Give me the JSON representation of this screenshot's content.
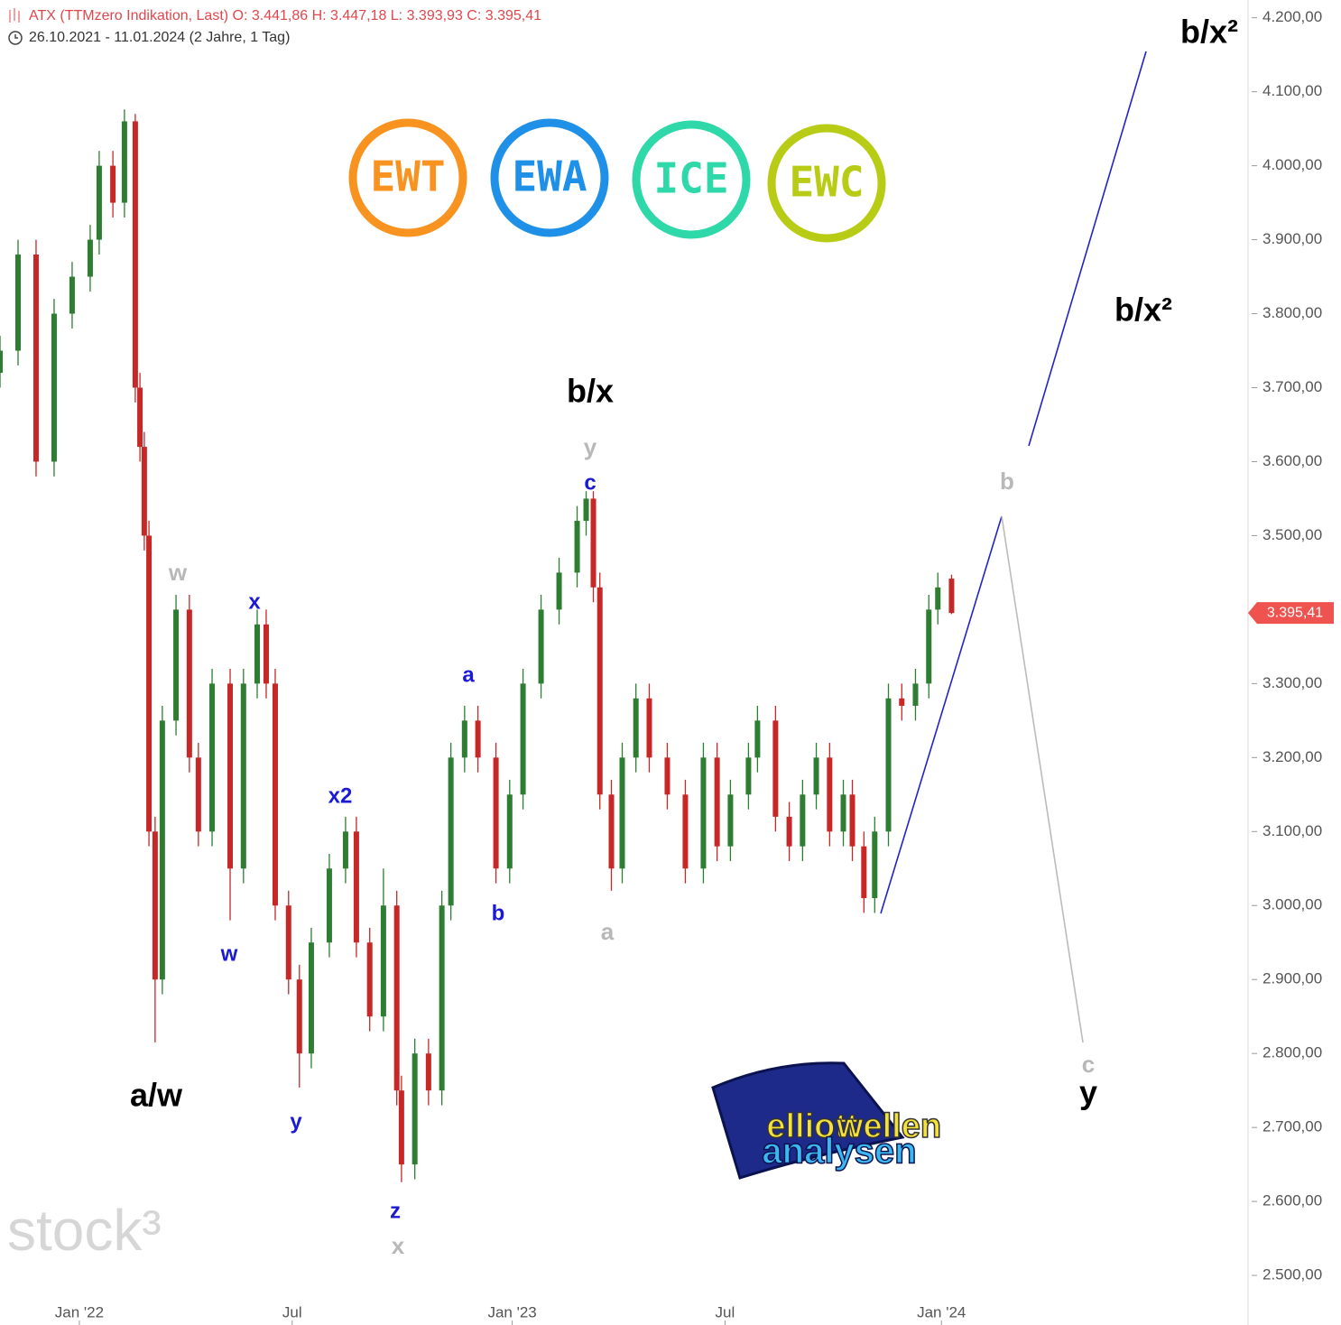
{
  "chart_data": {
    "type": "candlestick",
    "title": "ATX (TTMzero Indikation, Last)  O: 3.441,86  H: 3.447,18  L: 3.393,93  C: 3.395,41",
    "subtitle": "26.10.2021 - 11.01.2024   (2 Jahre, 1 Tag)",
    "price_tag": "3.395,41",
    "watermark": "stock³",
    "logos": [
      "EWT",
      "EWA",
      "ICE",
      "EWC"
    ],
    "brand": [
      "elliott",
      "wellen",
      "analysen"
    ],
    "annotations": [
      "w",
      "x",
      "w",
      "a/w",
      "y",
      "x2",
      "z",
      "x",
      "a",
      "b",
      "b/x",
      "y",
      "c",
      "a",
      "b",
      "c",
      "y",
      "b/x²",
      "b/x²"
    ],
    "up_color": "#2e7d32",
    "down_color": "#c62828",
    "xlim": [
      0,
      34.6
    ],
    "xticks": [
      {
        "value": 2.2,
        "label": "Jan '22"
      },
      {
        "value": 8.1,
        "label": "Jul"
      },
      {
        "value": 14.2,
        "label": "Jan '23"
      },
      {
        "value": 20.1,
        "label": "Jul"
      },
      {
        "value": 26.1,
        "label": "Jan '24"
      }
    ],
    "ylim": [
      2433,
      4224
    ],
    "yticks": [
      {
        "value": 2500,
        "label": "2.500,00"
      },
      {
        "value": 2600,
        "label": "2.600,00"
      },
      {
        "value": 2700,
        "label": "2.700,00"
      },
      {
        "value": 2800,
        "label": "2.800,00"
      },
      {
        "value": 2900,
        "label": "2.900,00"
      },
      {
        "value": 3000,
        "label": "3.000,00"
      },
      {
        "value": 3100,
        "label": "3.100,00"
      },
      {
        "value": 3200,
        "label": "3.200,00"
      },
      {
        "value": 3300,
        "label": "3.300,00"
      },
      {
        "value": 3400,
        "label": "3.400,00"
      },
      {
        "value": 3500,
        "label": "3.500,00"
      },
      {
        "value": 3600,
        "label": "3.600,00"
      },
      {
        "value": 3700,
        "label": "3.700,00"
      },
      {
        "value": 3800,
        "label": "3.800,00"
      },
      {
        "value": 3900,
        "label": "3.900,00"
      },
      {
        "value": 4000,
        "label": "4.000,00"
      },
      {
        "value": 4100,
        "label": "4.100,00"
      },
      {
        "value": 4200,
        "label": "4.200,00"
      }
    ],
    "x": [
      0,
      0.5,
      1,
      1.5,
      2,
      2.5,
      2.75,
      3.13,
      3.45,
      3.75,
      3.88,
      4,
      4.13,
      4.3,
      4.5,
      4.88,
      5.25,
      5.5,
      5.88,
      6.38,
      6.75,
      7.13,
      7.38,
      7.63,
      8,
      8.3,
      8.63,
      9.13,
      9.58,
      9.88,
      10.25,
      10.63,
      11,
      11.13,
      11.5,
      11.88,
      12.25,
      12.5,
      12.88,
      13.25,
      13.75,
      14.13,
      14.5,
      15,
      15.5,
      16,
      16.25,
      16.45,
      16.63,
      16.95,
      17.25,
      17.63,
      18,
      18.5,
      19,
      19.5,
      19.88,
      20.25,
      20.75,
      21,
      21.5,
      21.88,
      22.25,
      22.63,
      23,
      23.38,
      23.63,
      23.95,
      24.25,
      24.63,
      25,
      25.38,
      25.75,
      26,
      26.38
    ],
    "open": [
      3720,
      3750,
      3880,
      3600,
      3800,
      3850,
      3900,
      4000,
      3950,
      4060,
      3700,
      3620,
      3500,
      3100,
      2900,
      3250,
      3400,
      3200,
      3100,
      3300,
      3050,
      3300,
      3380,
      3300,
      3000,
      2900,
      2800,
      2950,
      3050,
      3100,
      2950,
      2850,
      3000,
      2750,
      2650,
      2800,
      2750,
      3000,
      3200,
      3250,
      3200,
      3050,
      3150,
      3300,
      3400,
      3450,
      3520,
      3550,
      3430,
      3150,
      3050,
      3200,
      3280,
      3200,
      3150,
      3050,
      3200,
      3080,
      3150,
      3200,
      3250,
      3120,
      3080,
      3150,
      3200,
      3100,
      3150,
      3080,
      3010,
      3100,
      3280,
      3270,
      3300,
      3400,
      3441.86
    ],
    "high": [
      3770,
      3900,
      3900,
      3820,
      3870,
      3920,
      4020,
      4020,
      4076,
      4070,
      3720,
      3640,
      3520,
      3120,
      3270,
      3420,
      3420,
      3220,
      3320,
      3320,
      3320,
      3400,
      3400,
      3320,
      3020,
      2920,
      2970,
      3070,
      3120,
      3120,
      2970,
      3050,
      3020,
      2770,
      2820,
      2820,
      3020,
      3220,
      3270,
      3270,
      3220,
      3170,
      3320,
      3420,
      3470,
      3540,
      3560,
      3560,
      3450,
      3170,
      3220,
      3300,
      3300,
      3220,
      3170,
      3220,
      3220,
      3170,
      3220,
      3270,
      3270,
      3140,
      3170,
      3220,
      3220,
      3170,
      3170,
      3100,
      3120,
      3300,
      3300,
      3320,
      3420,
      3450,
      3447.18
    ],
    "low": [
      3700,
      3730,
      3580,
      3580,
      3780,
      3830,
      3880,
      3930,
      3930,
      3680,
      3600,
      3480,
      3080,
      2815,
      2880,
      3230,
      3180,
      3080,
      3080,
      2980,
      3030,
      3280,
      3280,
      2980,
      2880,
      2754,
      2780,
      2930,
      3030,
      2930,
      2830,
      2830,
      2730,
      2626,
      2630,
      2730,
      2730,
      2980,
      3180,
      3180,
      3030,
      3030,
      3130,
      3280,
      3380,
      3430,
      3500,
      3410,
      3130,
      3020,
      3030,
      3180,
      3180,
      3130,
      3030,
      3030,
      3060,
      3060,
      3130,
      3180,
      3100,
      3060,
      3060,
      3130,
      3080,
      3080,
      3060,
      2990,
      2990,
      3080,
      3250,
      3250,
      3280,
      3380,
      3393.93
    ],
    "close": [
      3750,
      3880,
      3600,
      3800,
      3850,
      3900,
      4000,
      3950,
      4060,
      3700,
      3620,
      3500,
      3100,
      2900,
      3250,
      3400,
      3200,
      3100,
      3300,
      3050,
      3300,
      3380,
      3300,
      3000,
      2900,
      2800,
      2950,
      3050,
      3100,
      2950,
      2850,
      3000,
      2750,
      2650,
      2800,
      2750,
      3000,
      3200,
      3250,
      3200,
      3050,
      3150,
      3300,
      3400,
      3450,
      3520,
      3550,
      3430,
      3150,
      3050,
      3200,
      3280,
      3200,
      3150,
      3050,
      3200,
      3080,
      3150,
      3200,
      3250,
      3120,
      3080,
      3150,
      3200,
      3100,
      3150,
      3080,
      3010,
      3100,
      3280,
      3270,
      3300,
      3400,
      3430,
      3395.41
    ]
  }
}
